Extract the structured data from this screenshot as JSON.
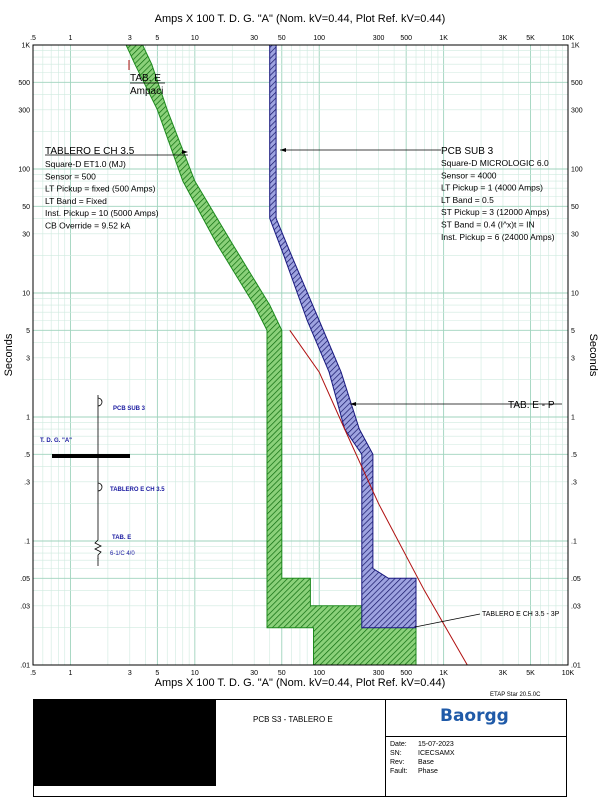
{
  "chart_data": {
    "type": "line",
    "title": "Amps  X  100   T. D. G. \"A\" (Nom. kV=0.44, Plot Ref. kV=0.44)",
    "xlabel": "Amps  X  100   T. D. G. \"A\" (Nom. kV=0.44, Plot Ref. kV=0.44)",
    "ylabel": "Seconds",
    "xscale": "log",
    "yscale": "log",
    "xlim": [
      0.5,
      10000
    ],
    "ylim": [
      0.01,
      1000
    ],
    "x_ticks": [
      ".5",
      "1",
      "3",
      "5",
      "10",
      "30",
      "50",
      "100",
      "300",
      "500",
      "1K",
      "3K",
      "5K",
      "10K"
    ],
    "x_tick_values": [
      0.5,
      1,
      3,
      5,
      10,
      30,
      50,
      100,
      300,
      500,
      1000,
      3000,
      5000,
      10000
    ],
    "y_ticks": [
      "1K",
      "500",
      "300",
      "100",
      "50",
      "30",
      "10",
      "5",
      "3",
      "1",
      ".5",
      ".3",
      ".1",
      ".05",
      ".03",
      ".01"
    ],
    "y_tick_values": [
      1000,
      500,
      300,
      100,
      50,
      30,
      10,
      5,
      3,
      1,
      0.5,
      0.3,
      0.1,
      0.05,
      0.03,
      0.01
    ],
    "grid": true,
    "series": [
      {
        "name": "TABLERO E CH 3.5",
        "color": "#1e8b1e",
        "fill": "#8bd17a",
        "hatch": "diagonal",
        "band_points": [
          [
            3.8,
            1000
          ],
          [
            4.5,
            700
          ],
          [
            6,
            300
          ],
          [
            10,
            80
          ],
          [
            20,
            25
          ],
          [
            40,
            8
          ],
          [
            50,
            5
          ],
          [
            50,
            0.05
          ],
          [
            85,
            0.05
          ],
          [
            85,
            0.03
          ],
          [
            280,
            0.03
          ],
          [
            280,
            0.022
          ],
          [
            600,
            0.022
          ],
          [
            600,
            0.01
          ],
          [
            90,
            0.01
          ],
          [
            90,
            0.02
          ],
          [
            38,
            0.02
          ],
          [
            38,
            5
          ],
          [
            30,
            8
          ],
          [
            15,
            25
          ],
          [
            8,
            80
          ],
          [
            5,
            300
          ],
          [
            3.3,
            700
          ],
          [
            2.8,
            1000
          ]
        ]
      },
      {
        "name": "PCB SUB 3",
        "color": "#1a1a80",
        "fill": "#8f95d6",
        "hatch": "diagonal",
        "band_points": [
          [
            45,
            1000
          ],
          [
            45,
            40
          ],
          [
            60,
            20
          ],
          [
            100,
            6
          ],
          [
            150,
            2.3
          ],
          [
            210,
            0.8
          ],
          [
            270,
            0.5
          ],
          [
            270,
            0.06
          ],
          [
            360,
            0.05
          ],
          [
            600,
            0.05
          ],
          [
            600,
            0.02
          ],
          [
            220,
            0.02
          ],
          [
            220,
            0.5
          ],
          [
            160,
            0.8
          ],
          [
            120,
            2.3
          ],
          [
            80,
            6
          ],
          [
            52,
            20
          ],
          [
            40,
            40
          ],
          [
            40,
            1000
          ]
        ]
      },
      {
        "name": "TAB. E - P",
        "color": "#b01010",
        "points": [
          [
            58,
            5
          ],
          [
            100,
            2.3
          ],
          [
            160,
            0.8
          ],
          [
            300,
            0.2
          ],
          [
            700,
            0.04
          ],
          [
            1550,
            0.01
          ]
        ]
      }
    ],
    "annotations": {
      "tablero": {
        "title": "TABLERO E CH 3.5",
        "lines": [
          "Square-D  ET1.0 (MJ)",
          "Sensor = 500",
          "LT Pickup = fixed (500 Amps)",
          "LT Band = Fixed",
          "Inst. Pickup = 10 (5000 Amps)",
          "CB Override = 9.52 kA"
        ]
      },
      "pcb": {
        "title": "PCB SUB 3",
        "lines": [
          "Square-D  MICROLOGIC 6.0",
          "Sensor = 4000",
          "LT Pickup = 1 (4000 Amps)",
          "LT Band = 0.5",
          "ST Pickup = 3 (12000 Amps)",
          "ST Band = 0.4  (I^x)t = IN",
          "Inst. Pickup = 6 (24000 Amps)"
        ]
      },
      "tab_e_top": [
        "TAB. E",
        "Ampaci"
      ],
      "tab_e_p": "TAB. E - P",
      "tablero_3p": "TABLERO E CH 3.5 - 3P"
    },
    "one_line": {
      "pcb": "PCB SUB 3",
      "bus": "T. D. G. \"A\"",
      "breaker": "TABLERO E CH 3.5",
      "cable": "TAB. E",
      "cable_size": "6-1/C 4/0"
    }
  },
  "footer": {
    "version": "ETAP Star 20.5.0C",
    "project": "PCB S3 - TABLERO E",
    "logo": "Baorgg",
    "date_label": "Date:",
    "date": "15-07-2023",
    "sn_label": "SN:",
    "sn": "ICECSAMX",
    "rev_label": "Rev:",
    "rev": "Base",
    "fault_label": "Fault:",
    "fault": "Phase"
  }
}
